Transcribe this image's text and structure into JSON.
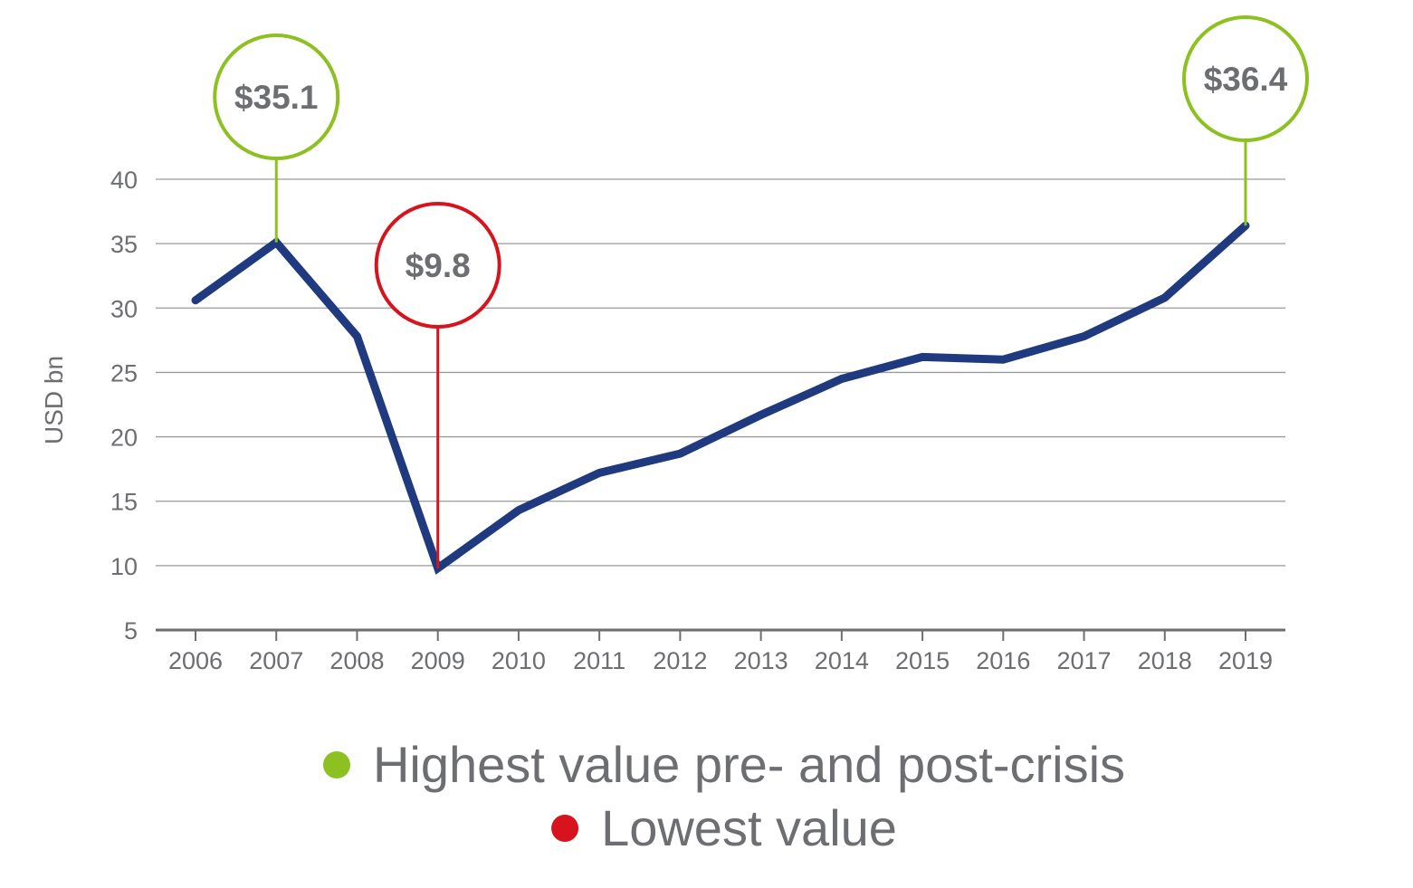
{
  "chart_data": {
    "type": "line",
    "title": "",
    "xlabel": "",
    "ylabel": "USD bn",
    "ylim": [
      5,
      40
    ],
    "yticks": [
      5,
      10,
      15,
      20,
      25,
      30,
      35,
      40
    ],
    "grid": true,
    "categories": [
      "2006",
      "2007",
      "2008",
      "2009",
      "2010",
      "2011",
      "2012",
      "2013",
      "2014",
      "2015",
      "2016",
      "2017",
      "2018",
      "2019"
    ],
    "series": [
      {
        "values": [
          30.6,
          35.1,
          27.8,
          9.8,
          14.3,
          17.2,
          18.7,
          21.7,
          24.5,
          26.2,
          26.0,
          27.8,
          30.8,
          36.4
        ],
        "color": "#1f3a7e"
      }
    ],
    "annotations": [
      {
        "category": "2007",
        "label": "$35.1",
        "kind": "high"
      },
      {
        "category": "2009",
        "label": "$9.8",
        "kind": "low"
      },
      {
        "category": "2019",
        "label": "$36.4",
        "kind": "high"
      }
    ],
    "legend": {
      "placement": "bottom",
      "items": [
        {
          "kind": "high",
          "label": "Highest value pre- and post-crisis",
          "color": "#8dc021"
        },
        {
          "kind": "low",
          "label": "Lowest value",
          "color": "#d7141e"
        }
      ]
    },
    "colors": {
      "grid": "#9a9a9a",
      "axis": "#6d6e71",
      "text": "#6d6e71",
      "high": "#8dc021",
      "low": "#d7141e"
    }
  }
}
